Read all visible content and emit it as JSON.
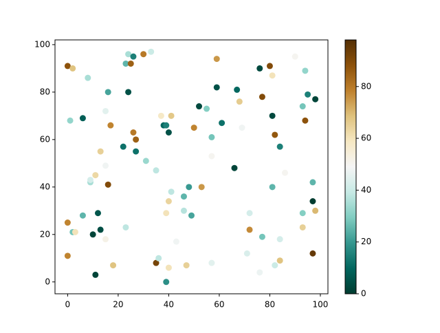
{
  "chart_data": {
    "type": "scatter",
    "x": [
      0,
      2,
      8,
      1,
      6,
      0,
      0,
      2,
      3,
      6,
      9,
      9,
      11,
      13,
      15,
      15,
      16,
      17,
      16,
      12,
      13,
      10,
      15,
      18,
      11,
      22,
      23,
      23,
      24,
      25,
      26,
      30,
      33,
      24,
      26,
      27,
      27,
      31,
      35,
      37,
      38,
      39,
      40,
      41,
      41,
      40,
      39,
      48,
      46,
      46,
      49,
      43,
      35,
      36,
      40,
      39,
      47,
      52,
      50,
      55,
      57,
      57,
      53,
      59,
      59,
      61,
      57,
      67,
      68,
      69,
      66,
      72,
      72,
      71,
      76,
      77,
      80,
      81,
      81,
      82,
      84,
      81,
      77,
      76,
      82,
      84,
      84,
      86,
      90,
      94,
      93,
      95,
      98,
      94,
      97,
      97,
      98,
      93,
      93,
      97
    ],
    "y": [
      91,
      90,
      86,
      68,
      69,
      25,
      11,
      21,
      21,
      28,
      42,
      43,
      45,
      55,
      49,
      72,
      80,
      66,
      41,
      29,
      22,
      20,
      18,
      7,
      3,
      57,
      23,
      92,
      96,
      92,
      95,
      96,
      97,
      80,
      63,
      60,
      55,
      51,
      47,
      70,
      66,
      66,
      63,
      70,
      38,
      34,
      29,
      40,
      36,
      30,
      28,
      17,
      8,
      10,
      6,
      0,
      7,
      74,
      65,
      73,
      61,
      53,
      40,
      94,
      82,
      67,
      8,
      81,
      76,
      65,
      48,
      29,
      22,
      12,
      90,
      78,
      91,
      87,
      70,
      62,
      57,
      40,
      19,
      4,
      7,
      18,
      9,
      46,
      95,
      89,
      74,
      79,
      77,
      68,
      42,
      34,
      30,
      29,
      23,
      12
    ],
    "c": [
      88,
      68,
      35,
      32,
      8,
      78,
      78,
      28,
      60,
      25,
      35,
      42,
      63,
      65,
      48,
      45,
      22,
      78,
      90,
      6,
      4,
      2,
      52,
      68,
      2,
      12,
      38,
      25,
      35,
      85,
      15,
      80,
      40,
      5,
      80,
      85,
      12,
      33,
      38,
      58,
      10,
      15,
      5,
      67,
      38,
      64,
      60,
      20,
      25,
      37,
      22,
      48,
      92,
      38,
      60,
      18,
      65,
      3,
      78,
      30,
      28,
      50,
      75,
      75,
      5,
      12,
      45,
      10,
      66,
      48,
      2,
      42,
      77,
      43,
      3,
      90,
      90,
      60,
      3,
      87,
      15,
      25,
      28,
      47,
      40,
      42,
      68,
      50,
      50,
      32,
      28,
      15,
      2,
      88,
      25,
      0,
      70,
      30,
      65,
      95
    ],
    "colormap": [
      "#003c30",
      "#01665e",
      "#35978f",
      "#80cdc1",
      "#c7eae5",
      "#f5f5f5",
      "#f6e8c3",
      "#dfc27d",
      "#bf812d",
      "#8c510a",
      "#543005"
    ],
    "clim": [
      0,
      98
    ],
    "cticks": [
      0,
      20,
      40,
      60,
      80
    ],
    "xlim": [
      -5,
      103
    ],
    "ylim": [
      -5,
      102
    ],
    "xticks": [
      0,
      20,
      40,
      60,
      80,
      100
    ],
    "yticks": [
      0,
      20,
      40,
      60,
      80,
      100
    ]
  }
}
